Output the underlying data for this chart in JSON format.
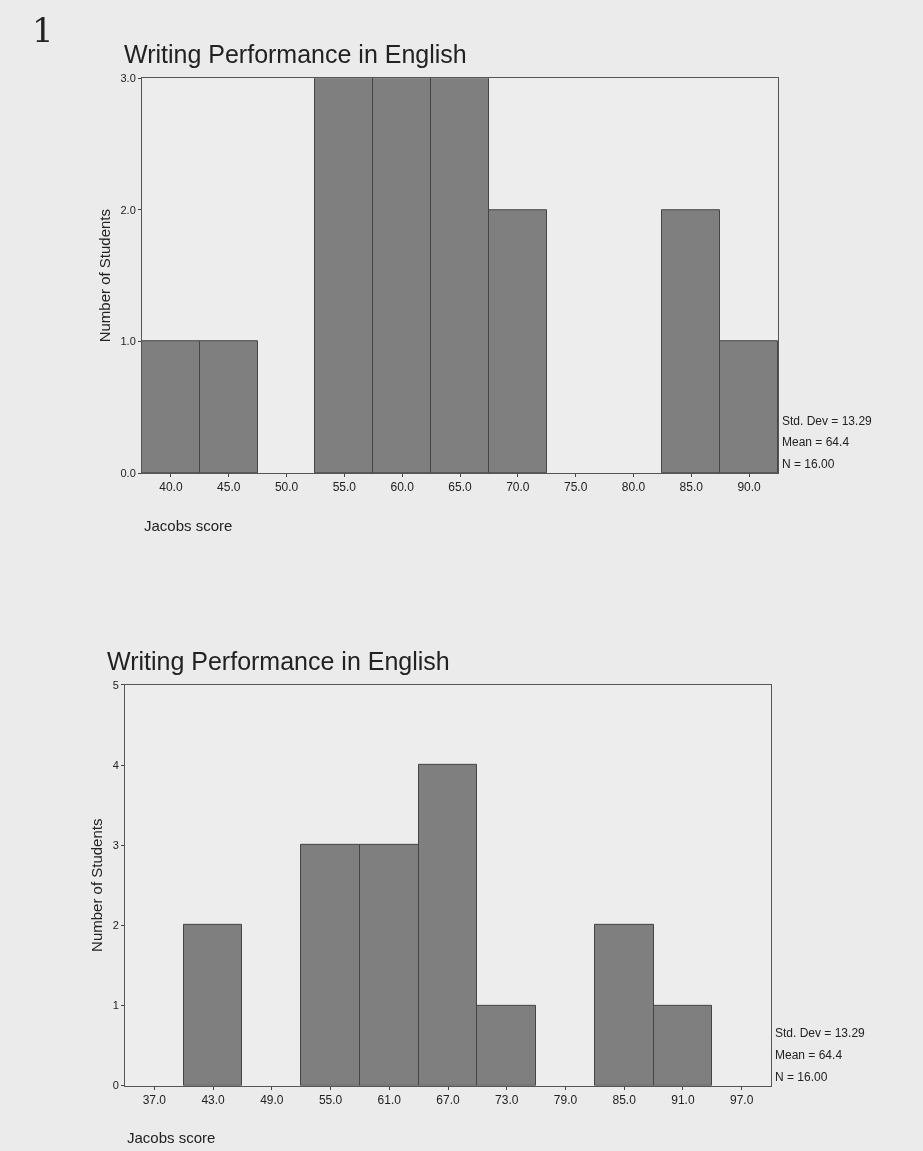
{
  "chart_data": [
    {
      "type": "histogram",
      "title": "Writing Performance in English",
      "xlabel": "Jacobs score",
      "ylabel": "Number of Students",
      "bins": [
        37.5,
        42.5,
        47.5,
        52.5,
        57.5,
        62.5,
        67.5,
        72.5,
        77.5,
        82.5,
        87.5,
        92.5
      ],
      "values": [
        1,
        1,
        0,
        3,
        3,
        3,
        2,
        0,
        0,
        2,
        1
      ],
      "color": "#7f7f7f",
      "grid": false,
      "xlim": [
        37.5,
        92.5
      ],
      "xticks": [
        {
          "value": 40,
          "label": "40.0"
        },
        {
          "value": 45,
          "label": "45.0"
        },
        {
          "value": 50,
          "label": "50.0"
        },
        {
          "value": 55,
          "label": "55.0"
        },
        {
          "value": 60,
          "label": "60.0"
        },
        {
          "value": 65,
          "label": "65.0"
        },
        {
          "value": 70,
          "label": "70.0"
        },
        {
          "value": 75,
          "label": "75.0"
        },
        {
          "value": 80,
          "label": "80.0"
        },
        {
          "value": 85,
          "label": "85.0"
        },
        {
          "value": 90,
          "label": "90.0"
        }
      ],
      "ylim": [
        0,
        3
      ],
      "yticks": [
        {
          "value": 0,
          "label": "0.0"
        },
        {
          "value": 1,
          "label": "1.0"
        },
        {
          "value": 2,
          "label": "2.0"
        },
        {
          "value": 3,
          "label": "3.0"
        }
      ],
      "annotations": [
        "1",
        "Std. Dev = 13.29",
        "Mean = 64.4",
        "N = 16.00"
      ]
    },
    {
      "type": "histogram",
      "title": "Writing Performance in English",
      "xlabel": "Jacobs score",
      "ylabel": "Number of Students",
      "bins": [
        34,
        40,
        46,
        52,
        58,
        64,
        70,
        76,
        82,
        88,
        94,
        100
      ],
      "values": [
        0,
        2,
        0,
        3,
        3,
        4,
        1,
        0,
        2,
        1,
        0
      ],
      "color": "#7f7f7f",
      "grid": false,
      "xlim": [
        34,
        100
      ],
      "xticks": [
        {
          "value": 37,
          "label": "37.0"
        },
        {
          "value": 43,
          "label": "43.0"
        },
        {
          "value": 49,
          "label": "49.0"
        },
        {
          "value": 55,
          "label": "55.0"
        },
        {
          "value": 61,
          "label": "61.0"
        },
        {
          "value": 67,
          "label": "67.0"
        },
        {
          "value": 73,
          "label": "73.0"
        },
        {
          "value": 79,
          "label": "79.0"
        },
        {
          "value": 85,
          "label": "85.0"
        },
        {
          "value": 91,
          "label": "91.0"
        },
        {
          "value": 97,
          "label": "97.0"
        }
      ],
      "ylim": [
        0,
        5
      ],
      "yticks": [
        0,
        1,
        2,
        3,
        4,
        5
      ],
      "annotations": [
        "Std. Dev = 13.29",
        "Mean = 64.4",
        "N = 16.00"
      ]
    }
  ]
}
